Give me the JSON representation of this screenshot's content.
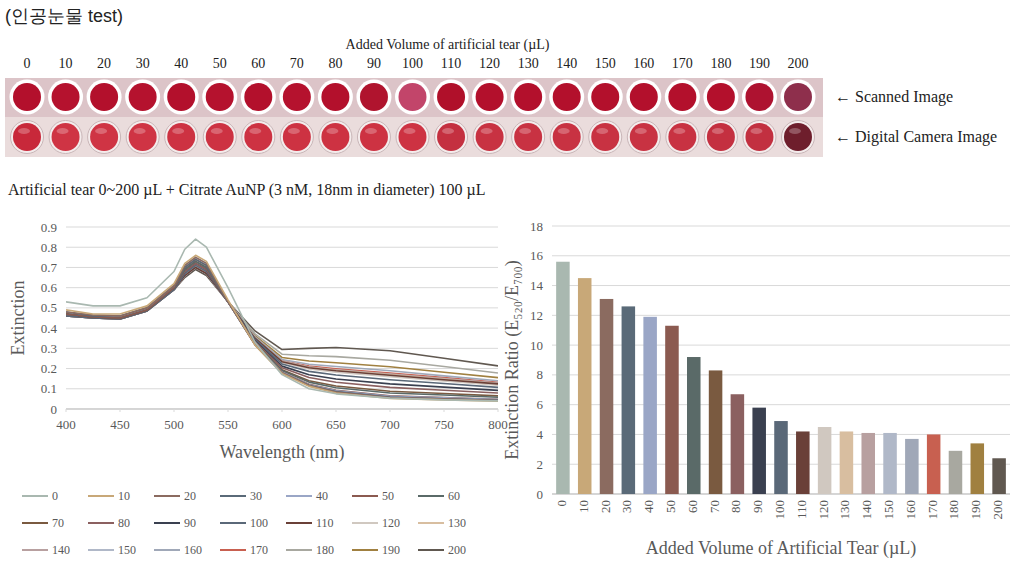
{
  "header": {
    "title": "(인공눈물 test)",
    "volume_label": "Added Volume of artificial tear (µL)",
    "volumes": [
      0,
      10,
      20,
      30,
      40,
      50,
      60,
      70,
      80,
      90,
      100,
      110,
      120,
      130,
      140,
      150,
      160,
      170,
      180,
      190,
      200
    ],
    "scanned_label": "← Scanned Image",
    "camera_label": "← Digital Camera Image",
    "scanned_colors": [
      "#b3102c",
      "#b5122e",
      "#b3102c",
      "#b5122e",
      "#b3102c",
      "#b5122e",
      "#b3102c",
      "#b5122e",
      "#b3102c",
      "#b0142e",
      "#c2456a",
      "#b0102a",
      "#b3102c",
      "#b3102c",
      "#b3102c",
      "#b3102c",
      "#b3102c",
      "#b3102c",
      "#b3102c",
      "#ae1230",
      "#8e2f4c"
    ],
    "camera_colors": [
      "#c8283a",
      "#cf3444",
      "#cf3444",
      "#cf3444",
      "#cd3242",
      "#cd3242",
      "#cd3242",
      "#cd3242",
      "#cd3242",
      "#cd3242",
      "#cd3242",
      "#c43040",
      "#c83242",
      "#c83242",
      "#c83242",
      "#c83242",
      "#c83242",
      "#c83242",
      "#c43040",
      "#c23040",
      "#6e1e2c"
    ],
    "caption": "Artificial tear 0~200 µL + Citrate AuNP (3 nM, 18nm in diameter) 100 µL"
  },
  "chart_data": [
    {
      "type": "line",
      "x_label": "Wavelength (nm)",
      "y_label": "Extinction",
      "x": [
        400,
        425,
        450,
        475,
        500,
        510,
        520,
        530,
        550,
        575,
        600,
        625,
        650,
        700,
        750,
        800
      ],
      "xlim": [
        400,
        800
      ],
      "xticks": [
        400,
        450,
        500,
        550,
        600,
        650,
        700,
        750,
        800
      ],
      "ylim": [
        0,
        0.9
      ],
      "yticks": [
        0,
        0.1,
        0.2,
        0.3,
        0.4,
        0.5,
        0.6,
        0.7,
        0.8,
        0.9
      ],
      "grid": true,
      "legend": "bottom",
      "series": [
        {
          "name": "0",
          "color": "#a9b8b0",
          "values": [
            0.53,
            0.51,
            0.51,
            0.55,
            0.68,
            0.79,
            0.84,
            0.8,
            0.6,
            0.33,
            0.17,
            0.1,
            0.075,
            0.054,
            0.045,
            0.04
          ]
        },
        {
          "name": "10",
          "color": "#c8a878",
          "values": [
            0.49,
            0.47,
            0.47,
            0.51,
            0.62,
            0.72,
            0.76,
            0.73,
            0.54,
            0.316,
            0.176,
            0.112,
            0.079,
            0.052,
            0.045,
            0.038
          ]
        },
        {
          "name": "20",
          "color": "#8b6b60",
          "values": [
            0.48,
            0.465,
            0.46,
            0.5,
            0.61,
            0.71,
            0.75,
            0.72,
            0.53,
            0.317,
            0.179,
            0.116,
            0.084,
            0.057,
            0.05,
            0.042
          ]
        },
        {
          "name": "30",
          "color": "#5a6a78",
          "values": [
            0.48,
            0.46,
            0.46,
            0.5,
            0.61,
            0.7,
            0.74,
            0.71,
            0.53,
            0.318,
            0.18,
            0.117,
            0.086,
            0.059,
            0.051,
            0.044
          ]
        },
        {
          "name": "40",
          "color": "#9aa6c6",
          "values": [
            0.48,
            0.465,
            0.46,
            0.5,
            0.61,
            0.71,
            0.75,
            0.72,
            0.53,
            0.319,
            0.182,
            0.12,
            0.09,
            0.063,
            0.055,
            0.047
          ]
        },
        {
          "name": "50",
          "color": "#8b5a50",
          "values": [
            0.47,
            0.455,
            0.45,
            0.49,
            0.6,
            0.7,
            0.74,
            0.71,
            0.53,
            0.32,
            0.183,
            0.122,
            0.092,
            0.065,
            0.057,
            0.048
          ]
        },
        {
          "name": "60",
          "color": "#5a6a68",
          "values": [
            0.47,
            0.455,
            0.45,
            0.49,
            0.6,
            0.69,
            0.73,
            0.7,
            0.53,
            0.324,
            0.19,
            0.133,
            0.105,
            0.079,
            0.069,
            0.058
          ]
        },
        {
          "name": "70",
          "color": "#7a5a40",
          "values": [
            0.47,
            0.455,
            0.45,
            0.49,
            0.6,
            0.69,
            0.73,
            0.7,
            0.53,
            0.326,
            0.194,
            0.14,
            0.114,
            0.088,
            0.077,
            0.065
          ]
        },
        {
          "name": "80",
          "color": "#8b6060",
          "values": [
            0.47,
            0.455,
            0.45,
            0.49,
            0.6,
            0.68,
            0.72,
            0.69,
            0.53,
            0.332,
            0.204,
            0.156,
            0.132,
            0.107,
            0.093,
            0.079
          ]
        },
        {
          "name": "90",
          "color": "#3a4050",
          "values": [
            0.47,
            0.455,
            0.45,
            0.49,
            0.6,
            0.68,
            0.72,
            0.69,
            0.53,
            0.337,
            0.212,
            0.169,
            0.148,
            0.124,
            0.108,
            0.092
          ]
        },
        {
          "name": "100",
          "color": "#5a6878",
          "values": [
            0.46,
            0.45,
            0.445,
            0.485,
            0.59,
            0.67,
            0.71,
            0.68,
            0.53,
            0.344,
            0.223,
            0.186,
            0.168,
            0.145,
            0.126,
            0.107
          ]
        },
        {
          "name": "110",
          "color": "#6a4038",
          "values": [
            0.46,
            0.45,
            0.445,
            0.485,
            0.59,
            0.66,
            0.7,
            0.67,
            0.53,
            0.35,
            0.234,
            0.204,
            0.189,
            0.167,
            0.145,
            0.124
          ]
        },
        {
          "name": "120",
          "color": "#d0c8c0",
          "values": [
            0.47,
            0.455,
            0.45,
            0.49,
            0.6,
            0.68,
            0.72,
            0.69,
            0.53,
            0.348,
            0.23,
            0.198,
            0.182,
            0.16,
            0.139,
            0.118
          ]
        },
        {
          "name": "130",
          "color": "#d8bea0",
          "values": [
            0.47,
            0.455,
            0.45,
            0.49,
            0.6,
            0.67,
            0.71,
            0.68,
            0.53,
            0.351,
            0.235,
            0.205,
            0.191,
            0.169,
            0.147,
            0.125
          ]
        },
        {
          "name": "140",
          "color": "#b8a0a0",
          "values": [
            0.47,
            0.455,
            0.45,
            0.49,
            0.6,
            0.67,
            0.71,
            0.68,
            0.53,
            0.352,
            0.237,
            0.208,
            0.194,
            0.173,
            0.151,
            0.128
          ]
        },
        {
          "name": "150",
          "color": "#b0b8c8",
          "values": [
            0.46,
            0.45,
            0.445,
            0.485,
            0.59,
            0.66,
            0.7,
            0.67,
            0.53,
            0.351,
            0.236,
            0.207,
            0.192,
            0.171,
            0.149,
            0.127
          ]
        },
        {
          "name": "160",
          "color": "#a0a8b8",
          "values": [
            0.46,
            0.45,
            0.445,
            0.485,
            0.59,
            0.66,
            0.7,
            0.67,
            0.53,
            0.357,
            0.245,
            0.221,
            0.21,
            0.189,
            0.164,
            0.14
          ]
        },
        {
          "name": "170",
          "color": "#c86050",
          "values": [
            0.47,
            0.455,
            0.45,
            0.49,
            0.6,
            0.67,
            0.71,
            0.68,
            0.53,
            0.353,
            0.239,
            0.212,
            0.199,
            0.178,
            0.155,
            0.132
          ]
        },
        {
          "name": "180",
          "color": "#a8a8a0",
          "values": [
            0.46,
            0.45,
            0.445,
            0.485,
            0.59,
            0.66,
            0.7,
            0.67,
            0.53,
            0.372,
            0.271,
            0.263,
            0.259,
            0.241,
            0.21,
            0.178
          ]
        },
        {
          "name": "190",
          "color": "#a08040",
          "values": [
            0.47,
            0.455,
            0.45,
            0.49,
            0.6,
            0.67,
            0.71,
            0.68,
            0.53,
            0.363,
            0.255,
            0.237,
            0.229,
            0.209,
            0.182,
            0.155
          ]
        },
        {
          "name": "200",
          "color": "#605850",
          "values": [
            0.46,
            0.45,
            0.445,
            0.485,
            0.59,
            0.65,
            0.69,
            0.66,
            0.53,
            0.386,
            0.294,
            0.3,
            0.304,
            0.288,
            0.251,
            0.213
          ]
        }
      ]
    },
    {
      "type": "bar",
      "x_label": "Added Volume of Artificial Tear (µL)",
      "y_label": "Extinction Ratio (E₅₂₀/E₇₀₀)",
      "categories": [
        "0",
        "10",
        "20",
        "30",
        "40",
        "50",
        "60",
        "70",
        "80",
        "90",
        "100",
        "110",
        "120",
        "130",
        "140",
        "150",
        "160",
        "170",
        "180",
        "190",
        "200"
      ],
      "values": [
        15.6,
        14.5,
        13.1,
        12.6,
        11.9,
        11.3,
        9.2,
        8.3,
        6.7,
        5.8,
        4.9,
        4.2,
        4.5,
        4.2,
        4.1,
        4.1,
        3.7,
        4.0,
        2.9,
        3.4,
        2.4
      ],
      "colors": [
        "#a9b8b0",
        "#c8a878",
        "#8b6b60",
        "#5a6a78",
        "#9aa6c6",
        "#8b5a50",
        "#5a6a68",
        "#7a5a40",
        "#8b6060",
        "#3a4050",
        "#5a6878",
        "#6a4038",
        "#d0c8c0",
        "#d8bea0",
        "#b8a0a0",
        "#b0b8c8",
        "#a0a8b8",
        "#c86050",
        "#a8a8a0",
        "#a08040",
        "#605850"
      ],
      "ylim": [
        0,
        18
      ],
      "yticks": [
        0,
        2,
        4,
        6,
        8,
        10,
        12,
        14,
        16,
        18
      ],
      "grid": true
    }
  ]
}
